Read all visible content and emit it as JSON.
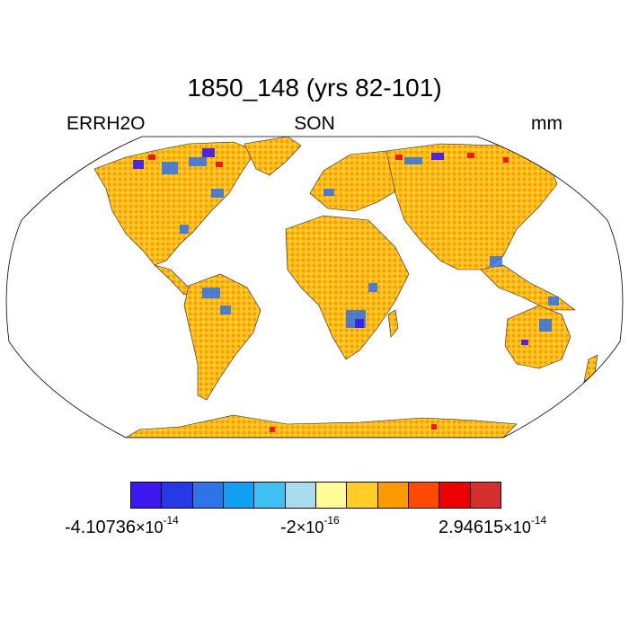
{
  "title": "1850_148 (yrs 82-101)",
  "labels": {
    "left": "ERRH2O",
    "center": "SON",
    "right": "mm"
  },
  "colorbar": {
    "colors": [
      "#3d16f0",
      "#2639e6",
      "#2e73e8",
      "#12a0f3",
      "#3ec0f5",
      "#a9dbef",
      "#fefa96",
      "#fecd28",
      "#fd9a02",
      "#fe4a01",
      "#ea0100",
      "#d42f2c"
    ],
    "min_label": {
      "mantissa": "-4.10736",
      "times": "×10",
      "exp": "-14"
    },
    "mid_label": {
      "mantissa": "-2",
      "times": "×10",
      "exp": "-16"
    },
    "max_label": {
      "mantissa": "2.94615",
      "times": "×10",
      "exp": "-14"
    }
  },
  "map": {
    "projection": "Robinson",
    "land_base_color": "#fdbf1f",
    "noise_colors": [
      "#fd9a02",
      "#fecd28",
      "#fe4a01"
    ],
    "ocean_color": "#ffffff"
  }
}
